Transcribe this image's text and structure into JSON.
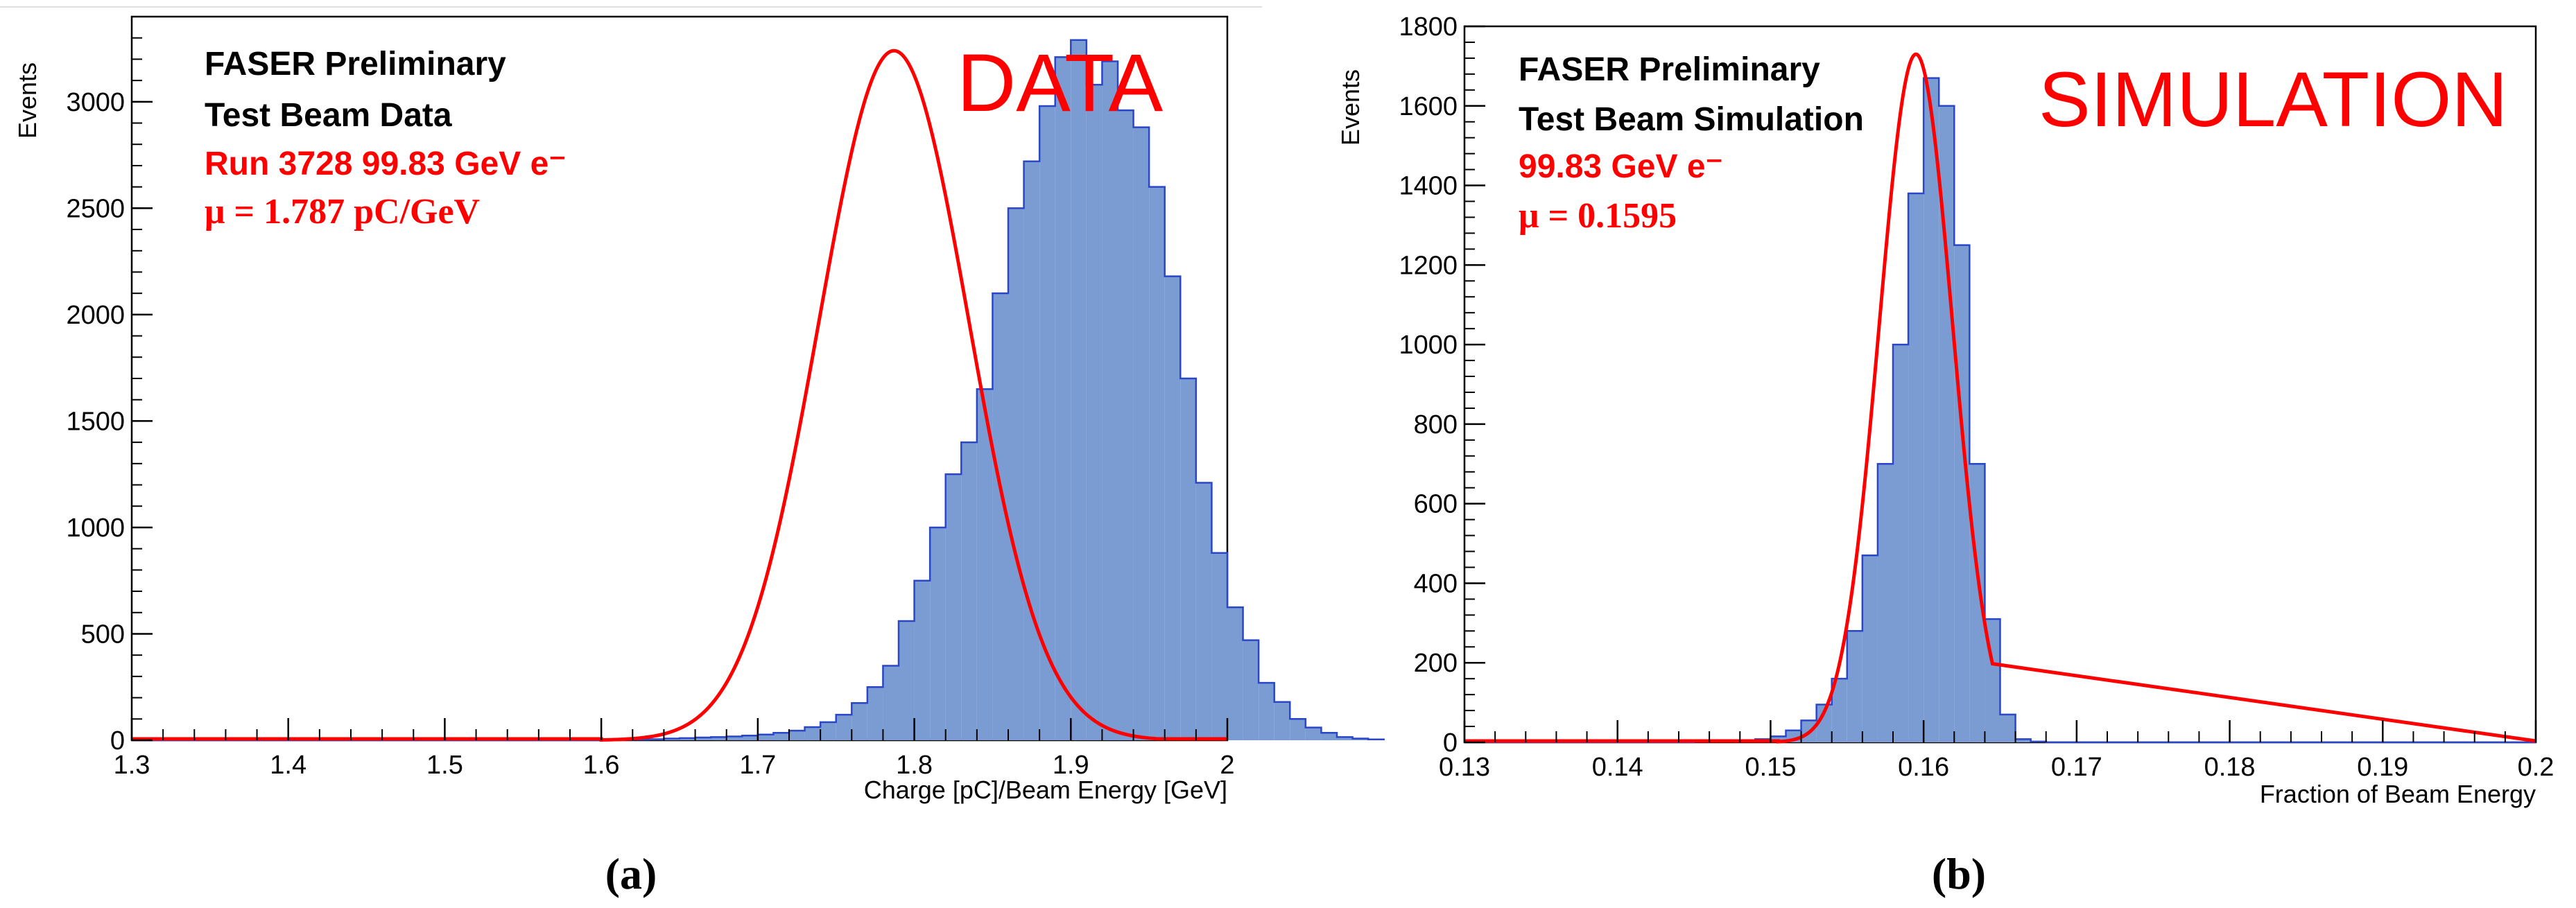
{
  "chart_data": [
    {
      "type": "bar",
      "subfigure_label": "(a)",
      "title": "",
      "xlabel": "Charge [pC]/Beam Energy [GeV]",
      "ylabel": "Events",
      "xlim": [
        1.3,
        2.0
      ],
      "ylim": [
        0,
        3400
      ],
      "xticks": [
        "1.3",
        "1.4",
        "1.5",
        "1.6",
        "1.7",
        "1.8",
        "1.9",
        "2"
      ],
      "yticks": [
        {
          "value": 0,
          "label": "0"
        },
        {
          "value": 500,
          "label": "500"
        },
        {
          "value": 1000,
          "label": "1000"
        },
        {
          "value": 1500,
          "label": "1500"
        },
        {
          "value": 2000,
          "label": "2000"
        },
        {
          "value": 2500,
          "label": "2500"
        },
        {
          "value": 3000,
          "label": "3000"
        }
      ],
      "annotations": {
        "line1": "FASER Preliminary",
        "line2": "Test Beam Data",
        "line3": "Run 3728 99.83 GeV e⁻",
        "line4": "μ = 1.787 pC/GeV"
      },
      "big_label": "DATA",
      "histogram": {
        "bin_low": 1.3,
        "bin_width": 0.01,
        "values": [
          0,
          0,
          0,
          0,
          0,
          0,
          0,
          0,
          0,
          0,
          0,
          0,
          0,
          0,
          0,
          0,
          0,
          0,
          0,
          0,
          0,
          0,
          0,
          0,
          0,
          0,
          0,
          0,
          0,
          0,
          0,
          2,
          3,
          5,
          8,
          10,
          13,
          15,
          18,
          22,
          27,
          35,
          45,
          62,
          85,
          120,
          175,
          250,
          350,
          560,
          750,
          1000,
          1250,
          1400,
          1650,
          2100,
          2500,
          2720,
          2980,
          3210,
          3290,
          3080,
          3190,
          2960,
          2880,
          2600,
          2180,
          1700,
          1210,
          880,
          625,
          470,
          270,
          180,
          100,
          60,
          35,
          15,
          8,
          4
        ]
      },
      "fit": {
        "type": "gaussian",
        "mu": 1.787,
        "sigma": 0.048,
        "amplitude": 3240,
        "x_range": [
          1.6,
          1.955
        ]
      }
    },
    {
      "type": "bar",
      "subfigure_label": "(b)",
      "title": "",
      "xlabel": "Fraction of Beam Energy",
      "ylabel": "Events",
      "xlim": [
        0.13,
        0.2
      ],
      "ylim": [
        0,
        1800
      ],
      "xticks": [
        "0.13",
        "0.14",
        "0.15",
        "0.16",
        "0.17",
        "0.18",
        "0.19",
        "0.2"
      ],
      "yticks": [
        {
          "value": 0,
          "label": "0"
        },
        {
          "value": 200,
          "label": "200"
        },
        {
          "value": 400,
          "label": "400"
        },
        {
          "value": 600,
          "label": "600"
        },
        {
          "value": 800,
          "label": "800"
        },
        {
          "value": 1000,
          "label": "1000"
        },
        {
          "value": 1200,
          "label": "1200"
        },
        {
          "value": 1400,
          "label": "1400"
        },
        {
          "value": 1600,
          "label": "1600"
        },
        {
          "value": 1800,
          "label": "1800"
        }
      ],
      "annotations": {
        "line1": "FASER Preliminary",
        "line2": "Test Beam Simulation",
        "line3": "99.83 GeV e⁻",
        "line4": "μ = 0.1595"
      },
      "big_label": "SIMULATION",
      "histogram": {
        "bin_low": 0.13,
        "bin_width": 0.001,
        "values": [
          0,
          0,
          0,
          0,
          0,
          0,
          0,
          0,
          0,
          0,
          0,
          0,
          0,
          0,
          0,
          1,
          2,
          3,
          5,
          8,
          15,
          30,
          55,
          95,
          160,
          280,
          470,
          700,
          1000,
          1380,
          1670,
          1600,
          1250,
          700,
          310,
          70,
          8,
          2,
          0,
          0,
          0,
          0,
          0,
          0,
          0,
          0,
          0,
          0,
          0,
          0,
          0,
          0,
          0,
          0,
          0,
          0,
          0,
          0,
          0,
          0,
          0,
          0,
          0,
          0,
          0,
          0,
          0,
          0,
          0,
          0
        ]
      },
      "fit": {
        "type": "gaussian",
        "mu": 0.1595,
        "sigma": 0.0024,
        "amplitude": 1730,
        "x_range": [
          0.1505,
          0.1645
        ]
      }
    }
  ]
}
